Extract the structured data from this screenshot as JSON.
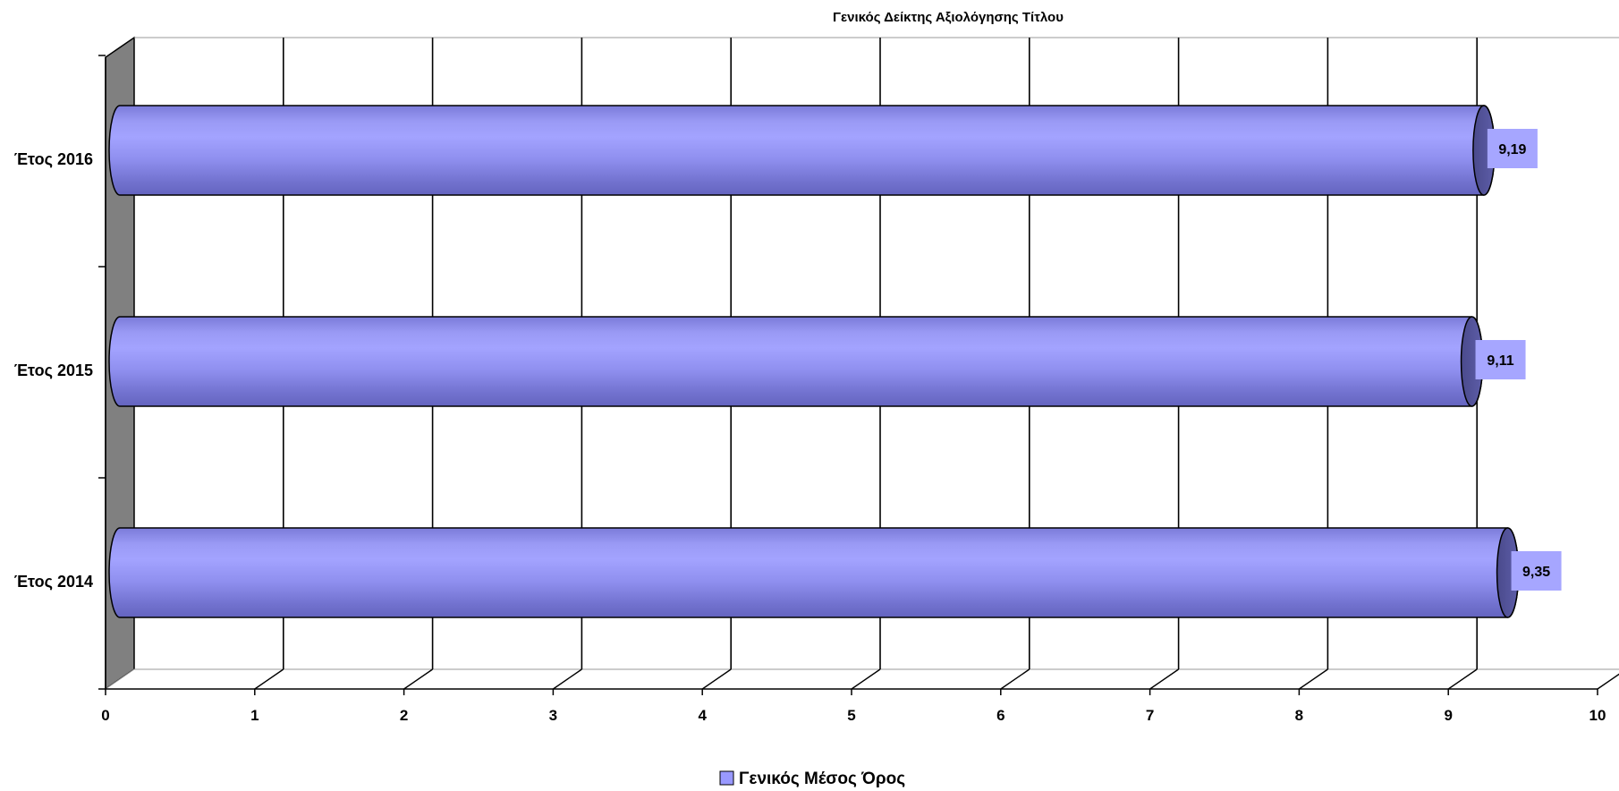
{
  "chart_data": {
    "type": "bar",
    "orientation": "horizontal",
    "style": "3d-cylinder",
    "title": "Γενικός Δείκτης Αξιολόγησης Τίτλου",
    "categories": [
      "Έτος 2016",
      "Έτος 2015",
      "Έτος 2014"
    ],
    "series": [
      {
        "name": "Γενικός Μέσος Όρος",
        "values": [
          9.19,
          9.11,
          9.35
        ],
        "labels": [
          "9,19",
          "9,11",
          "9,35"
        ],
        "color": "#9999ff"
      }
    ],
    "xlim": [
      0,
      10
    ],
    "xticks": [
      "0",
      "1",
      "2",
      "3",
      "4",
      "5",
      "6",
      "7",
      "8",
      "9",
      "10"
    ],
    "grid": true,
    "legend_position": "bottom"
  }
}
